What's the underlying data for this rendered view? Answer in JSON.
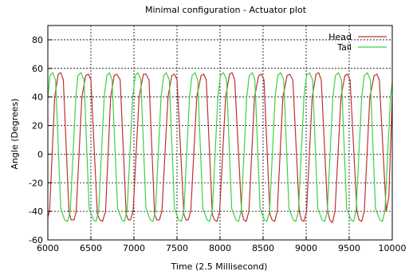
{
  "chart_data": {
    "type": "line",
    "title": "Minimal configuration - Actuator plot",
    "xlabel": "Time (2.5 Millisecond)",
    "ylabel": "Angle (Degrees)",
    "xlim": [
      6000,
      10000
    ],
    "ylim": [
      -60,
      90
    ],
    "x_ticks": [
      6000,
      6500,
      7000,
      7500,
      8000,
      8500,
      9000,
      9500,
      10000
    ],
    "y_ticks": [
      -60,
      -40,
      -20,
      0,
      20,
      40,
      60,
      80
    ],
    "x_tick_labels": [
      "6000",
      "6500",
      "7000",
      "7500",
      "8000",
      "8500",
      "9000",
      "9500",
      "10000"
    ],
    "y_tick_labels": [
      "-60",
      "-40",
      "-20",
      "0",
      "20",
      "40",
      "60",
      "80"
    ],
    "grid": true,
    "legend_position": "top-right",
    "series": [
      {
        "name": "Head",
        "color": "#c03030",
        "x": [
          6000,
          6020,
          6080,
          6120,
          6150,
          6180,
          6245,
          6270,
          6305,
          6330,
          6395,
          6440,
          6470,
          6500,
          6575,
          6605,
          6635,
          6670,
          6730,
          6770,
          6800,
          6840,
          6910,
          6935,
          6960,
          6990,
          7060,
          7110,
          7140,
          7175,
          7240,
          7265,
          7295,
          7325,
          7395,
          7440,
          7470,
          7500,
          7580,
          7605,
          7630,
          7660,
          7730,
          7780,
          7810,
          7840,
          7910,
          7935,
          7965,
          7995,
          8065,
          8110,
          8140,
          8170,
          8250,
          8275,
          8305,
          8335,
          8400,
          8450,
          8480,
          8510,
          8580,
          8605,
          8635,
          8665,
          8730,
          8780,
          8810,
          8845,
          8920,
          8945,
          8975,
          9005,
          9070,
          9115,
          9145,
          9175,
          9250,
          9275,
          9305,
          9335,
          9405,
          9450,
          9480,
          9510,
          9590,
          9615,
          9645,
          9675,
          9740,
          9790,
          9820,
          9850,
          9930,
          9960,
          10000
        ],
        "y": [
          -44,
          -40,
          40,
          56,
          57,
          52,
          -40,
          -46,
          -46,
          -40,
          40,
          55,
          56,
          52,
          -42,
          -46,
          -47,
          -40,
          40,
          55,
          56,
          52,
          -42,
          -46,
          -46,
          -40,
          40,
          56,
          56,
          52,
          -42,
          -46,
          -46,
          -40,
          40,
          55,
          56,
          52,
          -42,
          -46,
          -46,
          -40,
          40,
          55,
          56,
          52,
          -42,
          -46,
          -47,
          -40,
          40,
          56,
          57,
          52,
          -40,
          -46,
          -47,
          -40,
          40,
          55,
          56,
          52,
          -42,
          -46,
          -47,
          -40,
          40,
          55,
          56,
          52,
          -40,
          -46,
          -47,
          -40,
          40,
          56,
          57,
          52,
          -40,
          -46,
          -48,
          -40,
          40,
          55,
          56,
          52,
          -40,
          -46,
          -47,
          -40,
          40,
          55,
          56,
          52,
          -40,
          -30,
          40
        ]
      },
      {
        "name": "Tail",
        "color": "#40d040",
        "x": [
          6000,
          6025,
          6055,
          6090,
          6150,
          6195,
          6230,
          6260,
          6325,
          6350,
          6385,
          6420,
          6480,
          6530,
          6560,
          6590,
          6655,
          6685,
          6715,
          6745,
          6810,
          6860,
          6890,
          6920,
          6985,
          7015,
          7045,
          7080,
          7140,
          7190,
          7220,
          7250,
          7315,
          7345,
          7375,
          7410,
          7470,
          7520,
          7550,
          7580,
          7645,
          7675,
          7710,
          7740,
          7800,
          7850,
          7880,
          7910,
          7975,
          8005,
          8040,
          8075,
          8135,
          8185,
          8215,
          8245,
          8310,
          8340,
          8375,
          8405,
          8465,
          8515,
          8545,
          8575,
          8640,
          8670,
          8705,
          8740,
          8800,
          8850,
          8880,
          8910,
          8975,
          9005,
          9040,
          9075,
          9135,
          9185,
          9215,
          9245,
          9310,
          9340,
          9375,
          9410,
          9470,
          9520,
          9550,
          9580,
          9645,
          9675,
          9710,
          9745,
          9805,
          9855,
          9885,
          9915,
          9980,
          10000
        ],
        "y": [
          40,
          55,
          57,
          52,
          -38,
          -46,
          -47,
          -40,
          40,
          55,
          57,
          52,
          -38,
          -46,
          -47,
          -40,
          40,
          55,
          57,
          52,
          -38,
          -46,
          -47,
          -40,
          40,
          55,
          57,
          52,
          -38,
          -46,
          -47,
          -40,
          40,
          55,
          57,
          52,
          -38,
          -46,
          -47,
          -40,
          40,
          55,
          57,
          52,
          -38,
          -46,
          -47,
          -40,
          40,
          55,
          57,
          52,
          -38,
          -46,
          -47,
          -40,
          40,
          55,
          57,
          52,
          -38,
          -46,
          -47,
          -40,
          40,
          55,
          57,
          52,
          -38,
          -46,
          -47,
          -40,
          40,
          55,
          57,
          52,
          -38,
          -46,
          -47,
          -40,
          40,
          55,
          57,
          52,
          -38,
          -46,
          -47,
          -40,
          40,
          55,
          57,
          52,
          -38,
          -46,
          -47,
          -40,
          40,
          50
        ]
      }
    ]
  }
}
